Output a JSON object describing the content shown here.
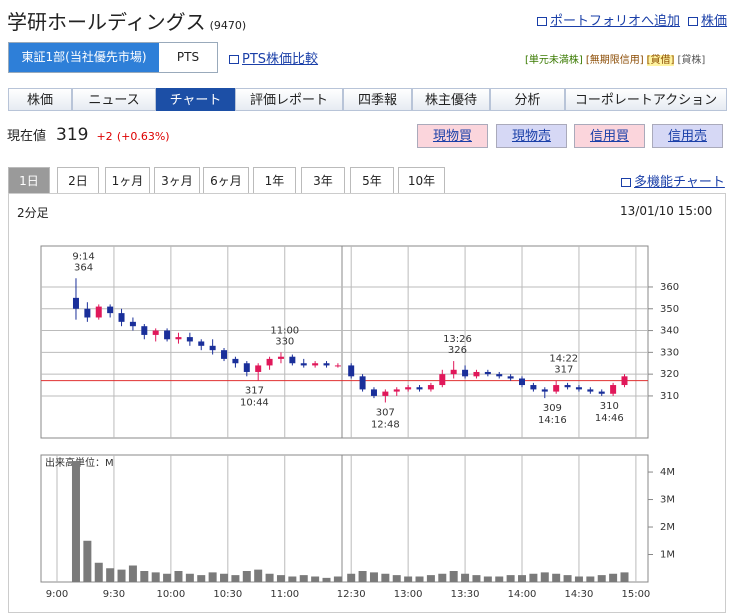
{
  "header": {
    "title": "学研ホールディングス",
    "code": "(9470)",
    "links": [
      "ポートフォリオへ追加",
      "株価"
    ]
  },
  "market": {
    "options": [
      "東証1部(当社優先市場)",
      "PTS"
    ],
    "compare_link": "PTS株価比較",
    "tags": [
      "[単元未満株]",
      "[無期限信用]",
      "[貸借]",
      "[貸株]"
    ]
  },
  "tabs": [
    "株価",
    "ニュース",
    "チャート",
    "評価レポート",
    "四季報",
    "株主優待",
    "分析",
    "コーポレートアクション"
  ],
  "quote": {
    "label": "現在値",
    "price": 319,
    "change": "+2",
    "change_pct": "(+0.63%)"
  },
  "order_buttons": [
    "現物買",
    "現物売",
    "信用買",
    "信用売"
  ],
  "periods": [
    "1日",
    "2日",
    "1ヶ月",
    "3ヶ月",
    "6ヶ月",
    "1年",
    "3年",
    "5年",
    "10年"
  ],
  "chart_link": "多機能チャート",
  "chart_interval": "2分足",
  "chart_timestamp": "13/01/10 15:00",
  "chart_data": [
    {
      "type": "candlestick",
      "up_color": "#e0185a",
      "down_color": "#1a2f9a",
      "reference_line": 317,
      "x": [
        "9:10",
        "9:16",
        "9:22",
        "9:28",
        "9:34",
        "9:40",
        "9:46",
        "9:52",
        "9:58",
        "10:04",
        "10:10",
        "10:16",
        "10:22",
        "10:28",
        "10:34",
        "10:40",
        "10:46",
        "10:52",
        "10:58",
        "11:04",
        "11:10",
        "11:16",
        "11:22",
        "11:28",
        "12:30",
        "12:36",
        "12:42",
        "12:48",
        "12:54",
        "13:00",
        "13:06",
        "13:12",
        "13:18",
        "13:24",
        "13:30",
        "13:36",
        "13:42",
        "13:48",
        "13:54",
        "14:00",
        "14:06",
        "14:12",
        "14:18",
        "14:24",
        "14:30",
        "14:36",
        "14:42",
        "14:48",
        "14:54"
      ],
      "open": [
        355,
        350,
        346,
        351,
        348,
        344,
        342,
        338,
        340,
        336,
        337,
        335,
        333,
        331,
        327,
        325,
        321,
        324,
        327,
        328,
        325,
        324,
        325,
        324,
        324,
        319,
        313,
        310,
        312,
        313,
        314,
        313,
        315,
        320,
        322,
        319,
        321,
        320,
        319,
        318,
        315,
        313,
        312,
        315,
        314,
        313,
        312,
        311,
        315
      ],
      "high": [
        364,
        353,
        352,
        352,
        350,
        346,
        343,
        341,
        341,
        339,
        339,
        336,
        336,
        332,
        328,
        326,
        325,
        328,
        330,
        329,
        327,
        326,
        326,
        325,
        325,
        320,
        314,
        313,
        314,
        315,
        315,
        316,
        322,
        326,
        324,
        322,
        322,
        321,
        320,
        319,
        316,
        314,
        317,
        316,
        315,
        314,
        313,
        316,
        320
      ],
      "low": [
        345,
        344,
        345,
        346,
        342,
        340,
        336,
        335,
        335,
        334,
        333,
        331,
        329,
        326,
        323,
        319,
        317,
        322,
        325,
        324,
        323,
        323,
        323,
        323,
        318,
        312,
        309,
        307,
        310,
        312,
        312,
        312,
        314,
        318,
        318,
        318,
        319,
        318,
        317,
        314,
        312,
        309,
        311,
        313,
        312,
        311,
        310,
        310,
        314
      ],
      "close": [
        350,
        346,
        351,
        348,
        344,
        342,
        338,
        340,
        336,
        337,
        335,
        333,
        331,
        327,
        325,
        321,
        324,
        327,
        328,
        325,
        324,
        325,
        324,
        324,
        319,
        313,
        310,
        312,
        313,
        314,
        313,
        315,
        320,
        322,
        319,
        321,
        320,
        319,
        318,
        315,
        313,
        312,
        315,
        314,
        313,
        312,
        311,
        315,
        319
      ],
      "ylim": [
        290.7,
        378.8
      ],
      "yticks": [
        310,
        320,
        330,
        340,
        350,
        360
      ],
      "xticks": [
        "9:30",
        "10:00",
        "10:30",
        "11:00",
        "12:30",
        "13:00",
        "13:30",
        "14:00",
        "14:30",
        "15:00"
      ],
      "annotations": [
        {
          "time": "9:14",
          "price": 364,
          "position": "above"
        },
        {
          "time": "11:00",
          "price": 330,
          "position": "above"
        },
        {
          "time": "10:44",
          "price": 317,
          "position": "below"
        },
        {
          "time": "12:48",
          "price": 307,
          "position": "below"
        },
        {
          "time": "13:26",
          "price": 326,
          "position": "above"
        },
        {
          "time": "14:16",
          "price": 309,
          "position": "below"
        },
        {
          "time": "14:22",
          "price": 317,
          "position": "above"
        },
        {
          "time": "14:46",
          "price": 310,
          "position": "below"
        }
      ]
    },
    {
      "type": "bar",
      "title": "出来高単位：M",
      "color": "#7a7a7a",
      "x": [
        "9:10",
        "9:16",
        "9:22",
        "9:28",
        "9:34",
        "9:40",
        "9:46",
        "9:52",
        "9:58",
        "10:04",
        "10:10",
        "10:16",
        "10:22",
        "10:28",
        "10:34",
        "10:40",
        "10:46",
        "10:52",
        "10:58",
        "11:04",
        "11:10",
        "11:16",
        "11:22",
        "11:28",
        "12:30",
        "12:36",
        "12:42",
        "12:48",
        "12:54",
        "13:00",
        "13:06",
        "13:12",
        "13:18",
        "13:24",
        "13:30",
        "13:36",
        "13:42",
        "13:48",
        "13:54",
        "14:00",
        "14:06",
        "14:12",
        "14:18",
        "14:24",
        "14:30",
        "14:36",
        "14:42",
        "14:48",
        "14:54"
      ],
      "values": [
        4400000,
        1500000,
        700000,
        500000,
        450000,
        600000,
        400000,
        350000,
        300000,
        400000,
        300000,
        250000,
        350000,
        300000,
        250000,
        400000,
        450000,
        300000,
        250000,
        200000,
        250000,
        200000,
        150000,
        200000,
        300000,
        400000,
        350000,
        300000,
        250000,
        200000,
        200000,
        250000,
        300000,
        400000,
        300000,
        250000,
        200000,
        200000,
        250000,
        250000,
        300000,
        350000,
        300000,
        250000,
        200000,
        200000,
        250000,
        300000,
        350000
      ],
      "ylim": [
        0,
        4620000
      ],
      "yticks": [
        {
          "value": 1000000,
          "label": "1M"
        },
        {
          "value": 2000000,
          "label": "2M"
        },
        {
          "value": 3000000,
          "label": "3M"
        },
        {
          "value": 4000000,
          "label": "4M"
        }
      ],
      "xticks": [
        "9:00",
        "9:30",
        "10:00",
        "10:30",
        "11:00",
        "12:30",
        "13:00",
        "13:30",
        "14:00",
        "14:30",
        "15:00"
      ]
    }
  ]
}
